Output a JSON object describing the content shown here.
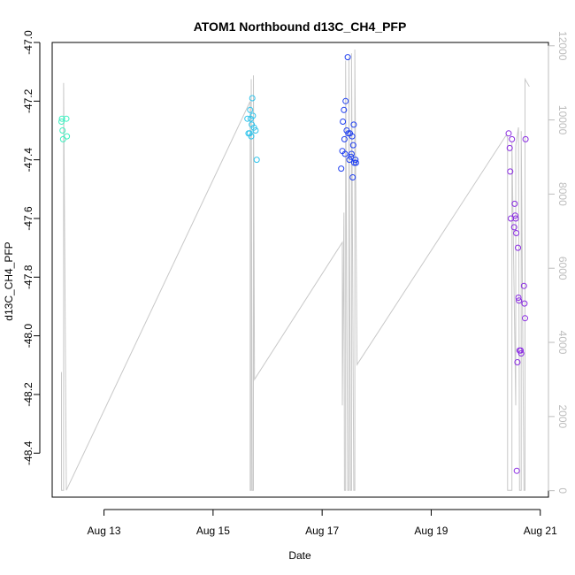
{
  "chart_data": {
    "type": "scatter",
    "title": "ATOM1 Northbound d13C_CH4_PFP",
    "xlabel": "Date",
    "ylabel": "d13C_CH4_PFP",
    "xlim": [
      12.05,
      21.15
    ],
    "ylim": [
      -48.55,
      -47.0
    ],
    "x_ticks": [
      13,
      15,
      17,
      19,
      21
    ],
    "x_tick_labels": [
      "Aug 13",
      "Aug 15",
      "Aug 17",
      "Aug 19",
      "Aug 21"
    ],
    "y_ticks": [
      -48.4,
      -48.2,
      -48.0,
      -47.8,
      -47.6,
      -47.4,
      -47.2,
      -47.0
    ],
    "y_tick_labels": [
      "-48.4",
      "-48.2",
      "-48.0",
      "-47.8",
      "-47.6",
      "-47.4",
      "-47.2",
      "-47.0"
    ],
    "y2_ticks": [
      0,
      2000,
      4000,
      6000,
      8000,
      10000,
      12000
    ],
    "y2_tick_labels": [
      "0",
      "2000",
      "4000",
      "6000",
      "8000",
      "10000",
      "12000"
    ],
    "y2lim": [
      -175,
      12090
    ],
    "grid": false,
    "colors": {
      "group1": "#3ef0c0",
      "group2": "#2ec4ec",
      "group3": "#1f3ff0",
      "group4": "#8a2be2",
      "line": "#c8c8c8",
      "secondary_axis": "#bdbdbd"
    },
    "series": [
      {
        "color": "#3ef0c0",
        "points": [
          {
            "x": 12.22,
            "y": -47.27
          },
          {
            "x": 12.23,
            "y": -47.26
          },
          {
            "x": 12.24,
            "y": -47.3
          },
          {
            "x": 12.25,
            "y": -47.33
          },
          {
            "x": 12.31,
            "y": -47.26
          },
          {
            "x": 12.32,
            "y": -47.32
          }
        ]
      },
      {
        "color": "#2ec4ec",
        "points": [
          {
            "x": 15.63,
            "y": -47.26
          },
          {
            "x": 15.65,
            "y": -47.31
          },
          {
            "x": 15.67,
            "y": -47.31
          },
          {
            "x": 15.68,
            "y": -47.23
          },
          {
            "x": 15.69,
            "y": -47.26
          },
          {
            "x": 15.7,
            "y": -47.32
          },
          {
            "x": 15.71,
            "y": -47.28
          },
          {
            "x": 15.72,
            "y": -47.19
          },
          {
            "x": 15.73,
            "y": -47.25
          },
          {
            "x": 15.75,
            "y": -47.29
          },
          {
            "x": 15.78,
            "y": -47.3
          },
          {
            "x": 15.8,
            "y": -47.4
          }
        ]
      },
      {
        "color": "#1f3ff0",
        "points": [
          {
            "x": 17.35,
            "y": -47.43
          },
          {
            "x": 17.37,
            "y": -47.37
          },
          {
            "x": 17.38,
            "y": -47.27
          },
          {
            "x": 17.4,
            "y": -47.23
          },
          {
            "x": 17.41,
            "y": -47.33
          },
          {
            "x": 17.42,
            "y": -47.38
          },
          {
            "x": 17.43,
            "y": -47.2
          },
          {
            "x": 17.45,
            "y": -47.3
          },
          {
            "x": 17.47,
            "y": -47.05
          },
          {
            "x": 17.48,
            "y": -47.31
          },
          {
            "x": 17.5,
            "y": -47.4
          },
          {
            "x": 17.51,
            "y": -47.31
          },
          {
            "x": 17.53,
            "y": -47.39
          },
          {
            "x": 17.54,
            "y": -47.38
          },
          {
            "x": 17.55,
            "y": -47.32
          },
          {
            "x": 17.56,
            "y": -47.46
          },
          {
            "x": 17.57,
            "y": -47.35
          },
          {
            "x": 17.58,
            "y": -47.28
          },
          {
            "x": 17.59,
            "y": -47.41
          },
          {
            "x": 17.61,
            "y": -47.4
          },
          {
            "x": 17.62,
            "y": -47.41
          }
        ]
      },
      {
        "color": "#8a2be2",
        "points": [
          {
            "x": 20.42,
            "y": -47.31
          },
          {
            "x": 20.44,
            "y": -47.36
          },
          {
            "x": 20.45,
            "y": -47.44
          },
          {
            "x": 20.46,
            "y": -47.6
          },
          {
            "x": 20.48,
            "y": -47.33
          },
          {
            "x": 20.52,
            "y": -47.63
          },
          {
            "x": 20.53,
            "y": -47.55
          },
          {
            "x": 20.54,
            "y": -47.59
          },
          {
            "x": 20.55,
            "y": -47.6
          },
          {
            "x": 20.56,
            "y": -47.65
          },
          {
            "x": 20.57,
            "y": -48.46
          },
          {
            "x": 20.58,
            "y": -48.09
          },
          {
            "x": 20.59,
            "y": -47.7
          },
          {
            "x": 20.6,
            "y": -47.87
          },
          {
            "x": 20.61,
            "y": -47.88
          },
          {
            "x": 20.62,
            "y": -48.05
          },
          {
            "x": 20.64,
            "y": -48.05
          },
          {
            "x": 20.65,
            "y": -48.06
          },
          {
            "x": 20.7,
            "y": -47.83
          },
          {
            "x": 20.71,
            "y": -47.89
          },
          {
            "x": 20.72,
            "y": -47.94
          },
          {
            "x": 20.73,
            "y": -47.33
          }
        ]
      }
    ],
    "secondary_line": {
      "color": "#c8c8c8",
      "points": [
        {
          "x": 12.22,
          "y": 3200
        },
        {
          "x": 12.22,
          "y": 10
        },
        {
          "x": 12.26,
          "y": 10
        },
        {
          "x": 12.26,
          "y": 11000
        },
        {
          "x": 12.31,
          "y": 10
        },
        {
          "x": 15.68,
          "y": 10500
        },
        {
          "x": 15.68,
          "y": 10
        },
        {
          "x": 15.7,
          "y": 10
        },
        {
          "x": 15.7,
          "y": 11100
        },
        {
          "x": 15.72,
          "y": 10
        },
        {
          "x": 15.74,
          "y": 10
        },
        {
          "x": 15.74,
          "y": 11200
        },
        {
          "x": 15.76,
          "y": 3000
        },
        {
          "x": 17.37,
          "y": 6700
        },
        {
          "x": 17.37,
          "y": 2300
        },
        {
          "x": 17.4,
          "y": 7500
        },
        {
          "x": 17.41,
          "y": 10
        },
        {
          "x": 17.43,
          "y": 10
        },
        {
          "x": 17.43,
          "y": 11600
        },
        {
          "x": 17.47,
          "y": 10
        },
        {
          "x": 17.49,
          "y": 10
        },
        {
          "x": 17.49,
          "y": 11700
        },
        {
          "x": 17.52,
          "y": 10
        },
        {
          "x": 17.54,
          "y": 10
        },
        {
          "x": 17.54,
          "y": 11800
        },
        {
          "x": 17.58,
          "y": 10
        },
        {
          "x": 17.6,
          "y": 10
        },
        {
          "x": 17.6,
          "y": 11900
        },
        {
          "x": 17.64,
          "y": 3400
        },
        {
          "x": 20.38,
          "y": 9600
        },
        {
          "x": 20.4,
          "y": 9500
        },
        {
          "x": 20.4,
          "y": 10
        },
        {
          "x": 20.48,
          "y": 10
        },
        {
          "x": 20.48,
          "y": 9400
        },
        {
          "x": 20.55,
          "y": 2300
        },
        {
          "x": 20.55,
          "y": 9300
        },
        {
          "x": 20.6,
          "y": 9800
        },
        {
          "x": 20.62,
          "y": 10
        },
        {
          "x": 20.65,
          "y": 10
        },
        {
          "x": 20.65,
          "y": 9700
        },
        {
          "x": 20.7,
          "y": 10
        },
        {
          "x": 20.72,
          "y": 10
        },
        {
          "x": 20.72,
          "y": 11100
        },
        {
          "x": 20.8,
          "y": 10900
        }
      ]
    }
  }
}
